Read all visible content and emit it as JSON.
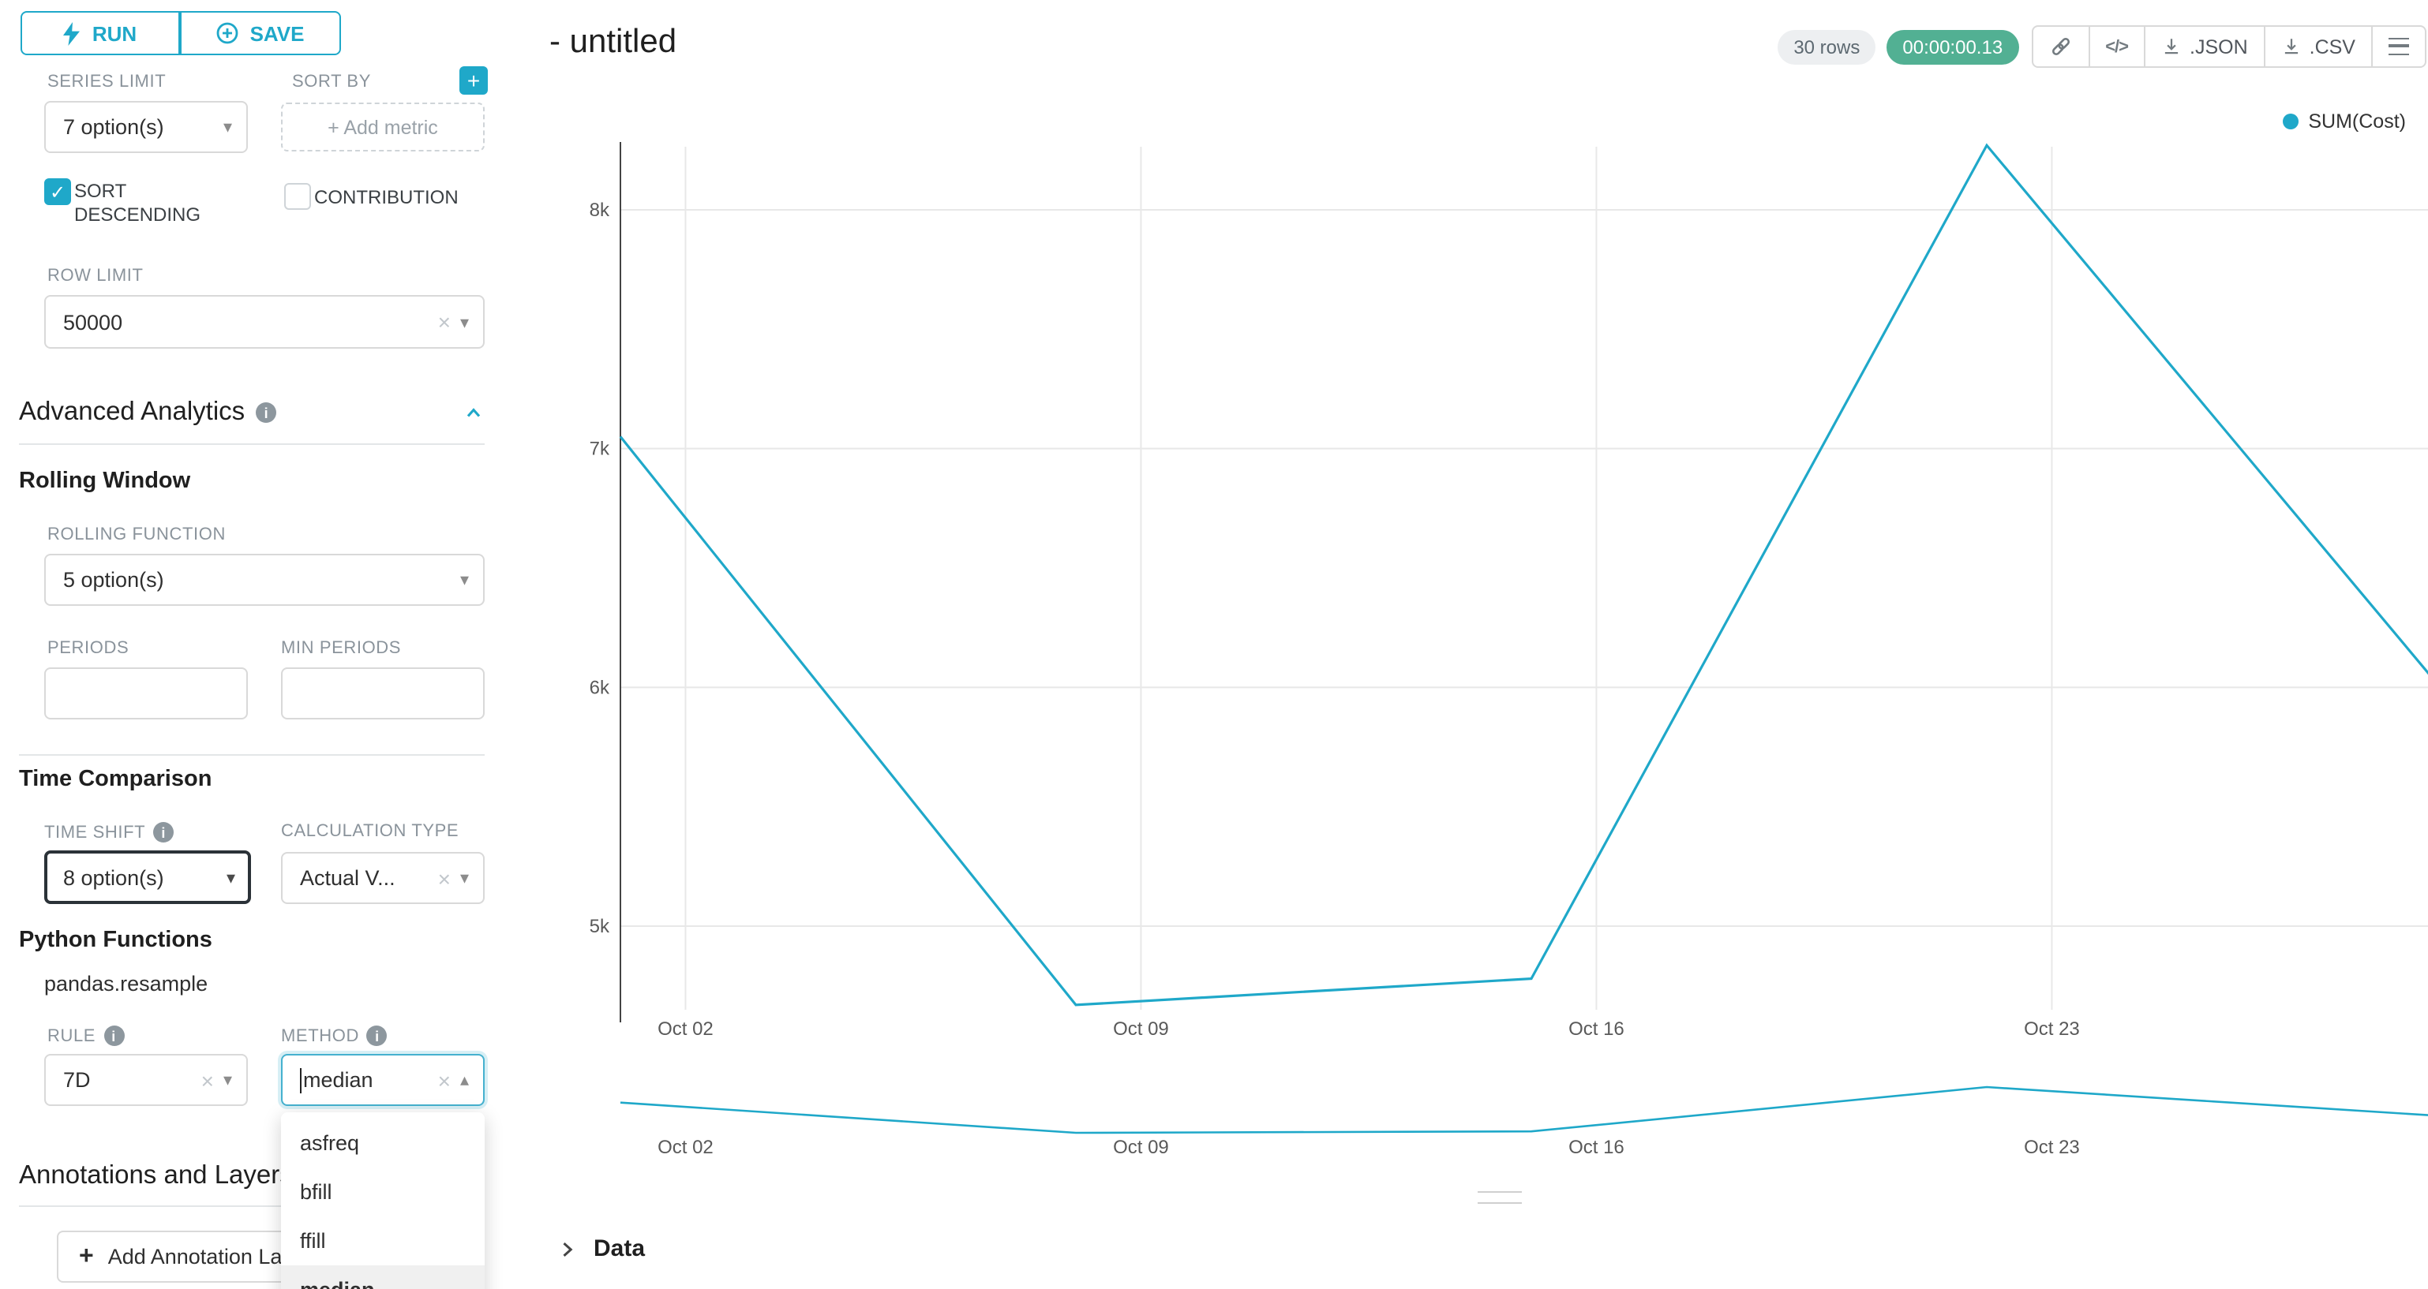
{
  "sidebar": {
    "run_button": "RUN",
    "save_button": "SAVE",
    "series_limit_label": "SERIES LIMIT",
    "series_limit_value": "7 option(s)",
    "sort_by_label": "SORT BY",
    "sort_by_placeholder": "+ Add metric",
    "sort_descending_label": "SORT DESCENDING",
    "contribution_label": "CONTRIBUTION",
    "row_limit_label": "ROW LIMIT",
    "row_limit_value": "50000",
    "advanced_analytics_title": "Advanced Analytics",
    "rolling_window_title": "Rolling Window",
    "rolling_function_label": "ROLLING FUNCTION",
    "rolling_function_value": "5 option(s)",
    "periods_label": "PERIODS",
    "min_periods_label": "MIN PERIODS",
    "time_comparison_title": "Time Comparison",
    "time_shift_label": "TIME SHIFT",
    "time_shift_value": "8 option(s)",
    "calculation_type_label": "CALCULATION TYPE",
    "calculation_type_value": "Actual V...",
    "python_functions_title": "Python Functions",
    "pandas_resample_label": "pandas.resample",
    "rule_label": "RULE",
    "rule_value": "7D",
    "method_label": "METHOD",
    "method_value": "median",
    "method_options": [
      "asfreq",
      "bfill",
      "ffill",
      "median"
    ],
    "method_selected": "median",
    "annotations_title": "Annotations and Layers",
    "add_annotation_button": "Add Annotation Layer"
  },
  "main": {
    "title": "- untitled",
    "rows_badge": "30 rows",
    "timer_badge": "00:00:00.13",
    "json_button": ".JSON",
    "csv_button": ".CSV",
    "data_panel_title": "Data"
  },
  "chart_data": {
    "type": "line",
    "title": "- untitled",
    "legend": "SUM(Cost)",
    "color": "#1FA8C9",
    "x": [
      "Oct 01",
      "Oct 08",
      "Oct 15",
      "Oct 22",
      "Oct 29"
    ],
    "series": [
      {
        "name": "SUM(Cost)",
        "values": [
          7050,
          4670,
          4780,
          8270,
          5990
        ]
      }
    ],
    "x_tick_labels": [
      "Oct 02",
      "Oct 09",
      "Oct 16",
      "Oct 23"
    ],
    "y_ticks": [
      8000,
      7000,
      6000,
      5000
    ],
    "y_tick_labels": [
      "8k",
      "7k",
      "6k",
      "5k"
    ],
    "ylim": [
      4500,
      8400
    ],
    "grid": true,
    "legend_position": "top-right",
    "has_range_selector": true
  }
}
